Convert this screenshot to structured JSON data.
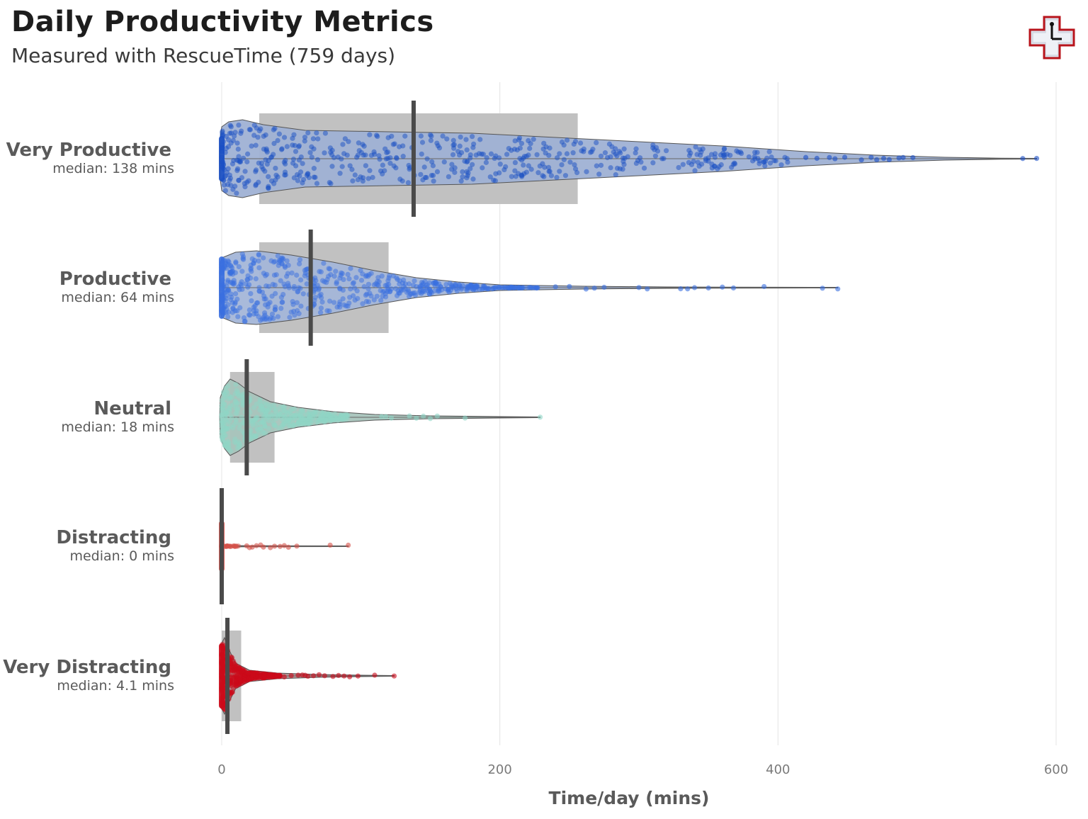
{
  "header": {
    "title": "Daily Productivity Metrics",
    "subtitle": "Measured with RescueTime (759 days)",
    "logo_icon": "rescuetime-clock-cross-icon"
  },
  "chart_data": {
    "type": "violin-box-jitter",
    "orientation": "horizontal",
    "xlabel": "Time/day (mins)",
    "xlim": [
      0,
      600
    ],
    "xticks": [
      0,
      200,
      400,
      600
    ],
    "grid": true,
    "categories": [
      {
        "name": "Very Productive",
        "median_label": "median: 138 mins",
        "median": 138,
        "q1": 27,
        "q3": 256,
        "max": 586,
        "color": "#1a4fc4",
        "violin_color": "#9fb1d4",
        "outer_points": [
          497,
          490,
          487,
          480,
          476,
          471,
          467,
          460,
          576,
          586,
          448,
          441,
          437,
          428,
          420
        ]
      },
      {
        "name": "Productive",
        "median_label": "median: 64 mins",
        "median": 64,
        "q1": 27,
        "q3": 120,
        "max": 443,
        "color": "#3a6fe0",
        "violin_color": "#a4b6d8",
        "outer_points": [
          275,
          268,
          262,
          250,
          240,
          300,
          306,
          330,
          335,
          340,
          350,
          360,
          368,
          390,
          432,
          443
        ]
      },
      {
        "name": "Neutral",
        "median_label": "median: 18 mins",
        "median": 18,
        "q1": 6,
        "q3": 38,
        "max": 229,
        "color": "#8fd6c6",
        "violin_color": "#a8c4bc",
        "outer_points": [
          115,
          118,
          122,
          135,
          140,
          145,
          150,
          155,
          175,
          229
        ]
      },
      {
        "name": "Distracting",
        "median_label": "median: 0 mins",
        "median": 0,
        "q1": 0,
        "q3": 0,
        "max": 91,
        "color": "#d6524a",
        "violin_color": "#d6524a",
        "outer_points": [
          18,
          20,
          22,
          25,
          28,
          30,
          35,
          38,
          42,
          45,
          48,
          54,
          78,
          91
        ]
      },
      {
        "name": "Very Distracting",
        "median_label": "median: 4.1 mins",
        "median": 4.1,
        "q1": 0,
        "q3": 14,
        "max": 124,
        "color": "#cc0a1a",
        "violin_color": "#b08e8e",
        "outer_points": [
          45,
          50,
          55,
          58,
          60,
          62,
          66,
          70,
          74,
          80,
          84,
          88,
          92,
          98,
          110,
          124
        ]
      }
    ]
  }
}
